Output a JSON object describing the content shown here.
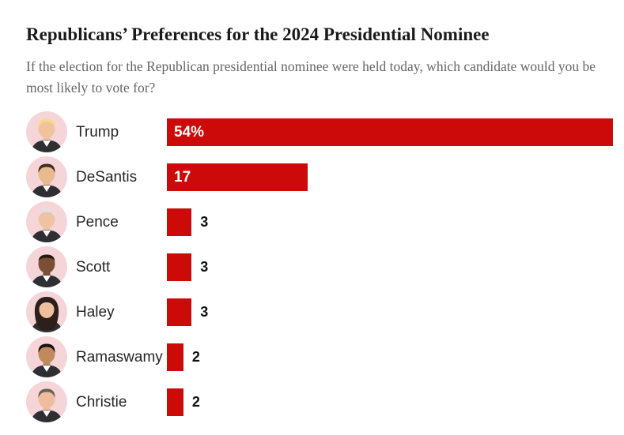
{
  "header": {
    "title": "Republicans’ Preferences for the 2024 Presidential Nominee",
    "subtitle": "If the election for the Republican presidential nominee were held today, which candidate would you be most likely to vote for?"
  },
  "colors": {
    "bar": "#cc0a0a",
    "avatar_background": "#f6d5d9",
    "title_text": "#1a1a1a",
    "subtitle_text": "#666666",
    "label_text": "#262626",
    "value_inside_text": "#ffffff",
    "value_outside_text": "#111111",
    "suit": "#2e2e33",
    "shirt": "#ffffff"
  },
  "chart_data": {
    "type": "bar",
    "orientation": "horizontal",
    "title": "Republicans’ Preferences for the 2024 Presidential Nominee",
    "subtitle": "If the election for the Republican presidential nominee were held today, which candidate would you be most likely to vote for?",
    "categories": [
      "Trump",
      "DeSantis",
      "Pence",
      "Scott",
      "Haley",
      "Ramaswamy",
      "Christie"
    ],
    "values": [
      54,
      17,
      3,
      3,
      3,
      2,
      2
    ],
    "value_labels": [
      "54%",
      "17",
      "3",
      "3",
      "3",
      "2",
      "2"
    ],
    "unit": "percent",
    "bar_color": "#cc0a0a",
    "value_label_rule": "inside-white for values >= 10, outside-black otherwise",
    "legend": "none",
    "grid": false,
    "axes_shown": false,
    "category_icons": "circular candidate headshot on light pink disc"
  },
  "rows": [
    {
      "name": "Trump",
      "value": 54,
      "value_label": "54%",
      "avatar": {
        "style": "short",
        "skin": "#f0c39c",
        "hair": "#f3d98b"
      }
    },
    {
      "name": "DeSantis",
      "value": 17,
      "value_label": "17",
      "avatar": {
        "style": "short",
        "skin": "#e9b98f",
        "hair": "#42301f"
      }
    },
    {
      "name": "Pence",
      "value": 3,
      "value_label": "3",
      "avatar": {
        "style": "short",
        "skin": "#eec3a3",
        "hair": "#e0e0e0"
      }
    },
    {
      "name": "Scott",
      "value": 3,
      "value_label": "3",
      "avatar": {
        "style": "buzz",
        "skin": "#7a4f35",
        "hair": "#241a12"
      }
    },
    {
      "name": "Haley",
      "value": 3,
      "value_label": "3",
      "avatar": {
        "style": "long",
        "skin": "#eec09e",
        "hair": "#2b201c"
      }
    },
    {
      "name": "Ramaswamy",
      "value": 2,
      "value_label": "2",
      "avatar": {
        "style": "short",
        "skin": "#c08a5d",
        "hair": "#181212"
      }
    },
    {
      "name": "Christie",
      "value": 2,
      "value_label": "2",
      "avatar": {
        "style": "short",
        "skin": "#efbd9d",
        "hair": "#6b6258"
      }
    }
  ]
}
